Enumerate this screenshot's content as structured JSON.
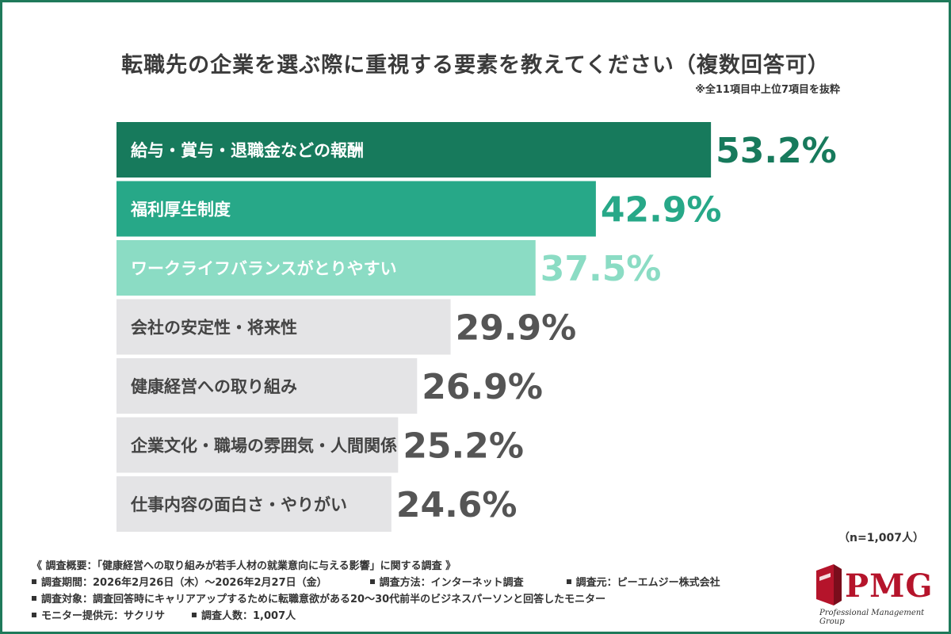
{
  "title": "転職先の企業を選ぶ際に重視する要素を教えてください（複数回答可）",
  "subnote": "※全11項目中上位7項目を抜粋",
  "n_note": "（n=1,007人）",
  "chart_data": {
    "type": "bar",
    "orientation": "horizontal",
    "categories": [
      "給与・賞与・退職金などの報酬",
      "福利厚生制度",
      "ワークライフバランスがとりやすい",
      "会社の安定性・将来性",
      "健康経営への取り組み",
      "企業文化・職場の雰囲気・人間関係",
      "仕事内容の面白さ・やりがい"
    ],
    "values": [
      53.2,
      42.9,
      37.5,
      29.9,
      26.9,
      25.2,
      24.6
    ],
    "value_labels": [
      "53.2%",
      "42.9%",
      "37.5%",
      "29.9%",
      "26.9%",
      "25.2%",
      "24.6%"
    ],
    "bar_colors": [
      "#177a5c",
      "#27a888",
      "#8bdcc4",
      "#e4e4e6",
      "#e4e4e6",
      "#e4e4e6",
      "#e4e4e6"
    ],
    "label_colors": [
      "#ffffff",
      "#ffffff",
      "#ffffff",
      "#444444",
      "#444444",
      "#444444",
      "#444444"
    ],
    "value_colors": [
      "#177a5c",
      "#27a888",
      "#8bdcc4",
      "#555555",
      "#555555",
      "#555555",
      "#555555"
    ],
    "xlim": [
      0,
      100
    ]
  },
  "footer": {
    "survey_title": "《 調査概要：「健康経営への取り組みが若手人材の就業意向に与える影響」に関する調査 》",
    "period": "調査期間：2026年2月26日（木）〜2026年2月27日（金）",
    "method": "調査方法：インターネット調査",
    "source": "調査元：ピーエムジー株式会社",
    "target": "調査対象：調査回答時にキャリアアップするために転職意欲がある20〜30代前半のビジネスパーソンと回答したモニター",
    "provider": "モニター提供元：サクリサ",
    "count": "調査人数：1,007人"
  },
  "logo": {
    "text": "PMG",
    "subtitle": "Professional Management Group",
    "color": "#b5142b"
  }
}
